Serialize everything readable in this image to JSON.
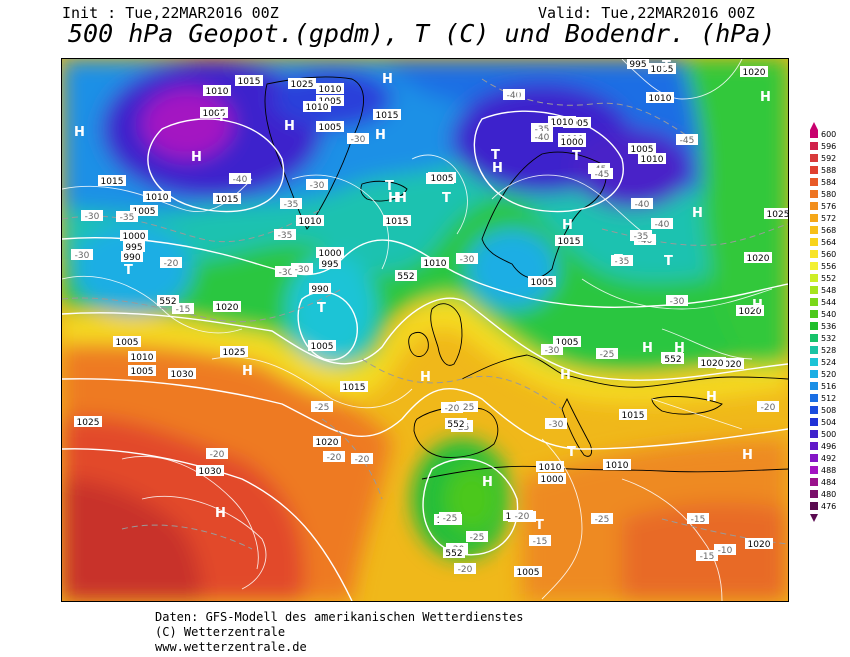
{
  "header": {
    "init": "Init : Tue,22MAR2016 00Z",
    "valid": "Valid: Tue,22MAR2016 00Z",
    "title": "500 hPa Geopot.(gpdm), T (C) und Bodendr. (hPa)"
  },
  "map": {
    "pressure_labels": [
      {
        "text": "1015"
      },
      {
        "text": "1010"
      },
      {
        "text": "1005"
      },
      {
        "text": "1010"
      },
      {
        "text": "1005"
      },
      {
        "text": "1015"
      },
      {
        "text": "1010"
      },
      {
        "text": "1005"
      },
      {
        "text": "1015"
      },
      {
        "text": "1005"
      },
      {
        "text": "1010"
      },
      {
        "text": "1015"
      },
      {
        "text": "1000"
      },
      {
        "text": "995"
      },
      {
        "text": "990"
      },
      {
        "text": "1010"
      },
      {
        "text": "1000"
      },
      {
        "text": "995"
      },
      {
        "text": "990"
      },
      {
        "text": "1005"
      },
      {
        "text": "1010"
      },
      {
        "text": "1005"
      },
      {
        "text": "1015"
      },
      {
        "text": "1020"
      },
      {
        "text": "1005"
      },
      {
        "text": "1000"
      },
      {
        "text": "1005"
      },
      {
        "text": "1010"
      },
      {
        "text": "1005"
      },
      {
        "text": "1000"
      },
      {
        "text": "1005"
      },
      {
        "text": "995"
      },
      {
        "text": "1010"
      },
      {
        "text": "1025"
      },
      {
        "text": "1005"
      },
      {
        "text": "1010"
      },
      {
        "text": "1015"
      },
      {
        "text": "1020"
      },
      {
        "text": "1025"
      },
      {
        "text": "1020"
      },
      {
        "text": "1020"
      },
      {
        "text": "1025"
      },
      {
        "text": "1030"
      },
      {
        "text": "1030"
      },
      {
        "text": "1015"
      },
      {
        "text": "1020"
      },
      {
        "text": "1010"
      },
      {
        "text": "1005"
      },
      {
        "text": "1000"
      },
      {
        "text": "1010"
      },
      {
        "text": "1005"
      },
      {
        "text": "1005"
      },
      {
        "text": "1010"
      },
      {
        "text": "1015"
      },
      {
        "text": "1020"
      },
      {
        "text": "1020"
      },
      {
        "text": "1025"
      },
      {
        "text": "1020"
      },
      {
        "text": "1010"
      },
      {
        "text": "1005"
      },
      {
        "text": "1000"
      },
      {
        "text": "1000"
      }
    ],
    "temperature_labels": [
      {
        "text": "-40"
      },
      {
        "text": "-30"
      },
      {
        "text": "-35"
      },
      {
        "text": "-40"
      },
      {
        "text": "-35"
      },
      {
        "text": "-30"
      },
      {
        "text": "-35"
      },
      {
        "text": "-30"
      },
      {
        "text": "-25"
      },
      {
        "text": "-35"
      },
      {
        "text": "-30"
      },
      {
        "text": "-20"
      },
      {
        "text": "-15"
      },
      {
        "text": "-30"
      },
      {
        "text": "-30"
      },
      {
        "text": "-40"
      },
      {
        "text": "-40"
      },
      {
        "text": "-45"
      },
      {
        "text": "-45"
      },
      {
        "text": "-40"
      },
      {
        "text": "-35"
      },
      {
        "text": "-45"
      },
      {
        "text": "-40"
      },
      {
        "text": "-35"
      },
      {
        "text": "-30"
      },
      {
        "text": "-25"
      },
      {
        "text": "-25"
      },
      {
        "text": "-30"
      },
      {
        "text": "-30"
      },
      {
        "text": "-25"
      },
      {
        "text": "-20"
      },
      {
        "text": "-20"
      },
      {
        "text": "-15"
      },
      {
        "text": "-25"
      },
      {
        "text": "-25"
      },
      {
        "text": "-20"
      },
      {
        "text": "-20"
      },
      {
        "text": "-15"
      },
      {
        "text": "-15"
      },
      {
        "text": "-10"
      },
      {
        "text": "-20"
      },
      {
        "text": "-25"
      },
      {
        "text": "-20"
      },
      {
        "text": "-25"
      },
      {
        "text": "-20"
      },
      {
        "text": "-15"
      },
      {
        "text": "-20"
      },
      {
        "text": "-30"
      },
      {
        "text": "-25"
      }
    ],
    "geopotential_labels": [
      {
        "text": "552"
      },
      {
        "text": "552"
      },
      {
        "text": "552"
      },
      {
        "text": "552"
      },
      {
        "text": "552"
      },
      {
        "text": "552"
      }
    ],
    "highs": [
      {
        "text": "H"
      },
      {
        "text": "H"
      },
      {
        "text": "H"
      },
      {
        "text": "H"
      },
      {
        "text": "H"
      },
      {
        "text": "H"
      },
      {
        "text": "H"
      },
      {
        "text": "H"
      },
      {
        "text": "H"
      },
      {
        "text": "H"
      },
      {
        "text": "H"
      },
      {
        "text": "H"
      },
      {
        "text": "H"
      },
      {
        "text": "H"
      },
      {
        "text": "H"
      },
      {
        "text": "H"
      },
      {
        "text": "H"
      },
      {
        "text": "H"
      },
      {
        "text": "H"
      },
      {
        "text": "H"
      },
      {
        "text": "H"
      }
    ],
    "lows": [
      {
        "text": "T"
      },
      {
        "text": "T"
      },
      {
        "text": "T"
      },
      {
        "text": "T"
      },
      {
        "text": "T"
      },
      {
        "text": "T"
      },
      {
        "text": "T"
      },
      {
        "text": "T"
      },
      {
        "text": "T"
      },
      {
        "text": "T"
      },
      {
        "text": "T"
      },
      {
        "text": "T"
      },
      {
        "text": "T"
      },
      {
        "text": "T"
      }
    ]
  },
  "colorscale": {
    "values": [
      "600",
      "596",
      "592",
      "588",
      "584",
      "580",
      "576",
      "572",
      "568",
      "564",
      "560",
      "556",
      "552",
      "548",
      "544",
      "540",
      "536",
      "532",
      "528",
      "524",
      "520",
      "516",
      "512",
      "508",
      "504",
      "500",
      "496",
      "492",
      "488",
      "484",
      "480",
      "476"
    ],
    "colors": [
      "#c8006e",
      "#d0204a",
      "#d83a3a",
      "#e04030",
      "#e85a28",
      "#ee7422",
      "#f28e1c",
      "#f5a718",
      "#f7c019",
      "#f8d41c",
      "#f8e426",
      "#f3f030",
      "#cdee26",
      "#a6e41e",
      "#7bd81a",
      "#4cc81a",
      "#1fbe2a",
      "#16c26a",
      "#1ac4a4",
      "#1cc4d6",
      "#1aaee4",
      "#1a8fe6",
      "#1a6ee4",
      "#1c4cde",
      "#2032d6",
      "#3e22cc",
      "#6018c8",
      "#8416c6",
      "#a414c2",
      "#9a128c",
      "#7a0e6a",
      "#5a0a50"
    ]
  },
  "footer": {
    "line1": "Daten: GFS-Modell des amerikanischen Wetterdienstes",
    "line2": "(C) Wetterzentrale",
    "line3": "www.wetterzentrale.de"
  }
}
